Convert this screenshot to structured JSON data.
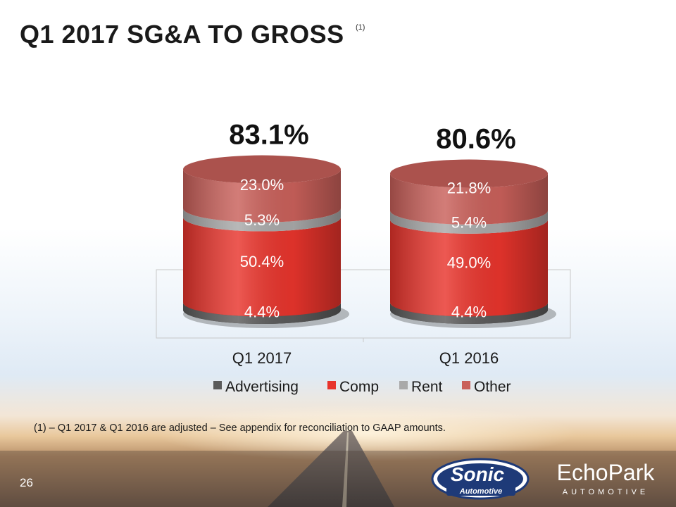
{
  "slide": {
    "title": "Q1 2017 SG&A TO GROSS",
    "title_superscript": "(1)",
    "footnote": "(1) – Q1 2017 & Q1 2016 are adjusted – See appendix for reconciliation to GAAP amounts.",
    "page_number": "26"
  },
  "logos": {
    "sonic_line1": "Sonic",
    "sonic_line2": "Automotive",
    "echopark_line1": "EchoPark",
    "echopark_line2": "AUTOMOTIVE"
  },
  "chart_data": {
    "type": "bar",
    "stacked": true,
    "style": "3d-cylinder",
    "categories": [
      "Q1 2017",
      "Q1 2016"
    ],
    "totals": [
      83.1,
      80.6
    ],
    "totals_labels": [
      "83.1%",
      "80.6%"
    ],
    "series": [
      {
        "name": "Advertising",
        "values": [
          4.4,
          4.4
        ],
        "labels": [
          "4.4%",
          "4.4%"
        ],
        "color": "#5a5a5a"
      },
      {
        "name": "Comp",
        "values": [
          50.4,
          49.0
        ],
        "labels": [
          "50.4%",
          "49.0%"
        ],
        "color": "#e8342c"
      },
      {
        "name": "Rent",
        "values": [
          5.3,
          5.4
        ],
        "labels": [
          "5.3%",
          "5.4%"
        ],
        "color": "#a9a9a9"
      },
      {
        "name": "Other",
        "values": [
          23.0,
          21.8
        ],
        "labels": [
          "23.0%",
          "21.8%"
        ],
        "color": "#c9605a"
      }
    ],
    "legend_position": "bottom",
    "grid": false
  }
}
